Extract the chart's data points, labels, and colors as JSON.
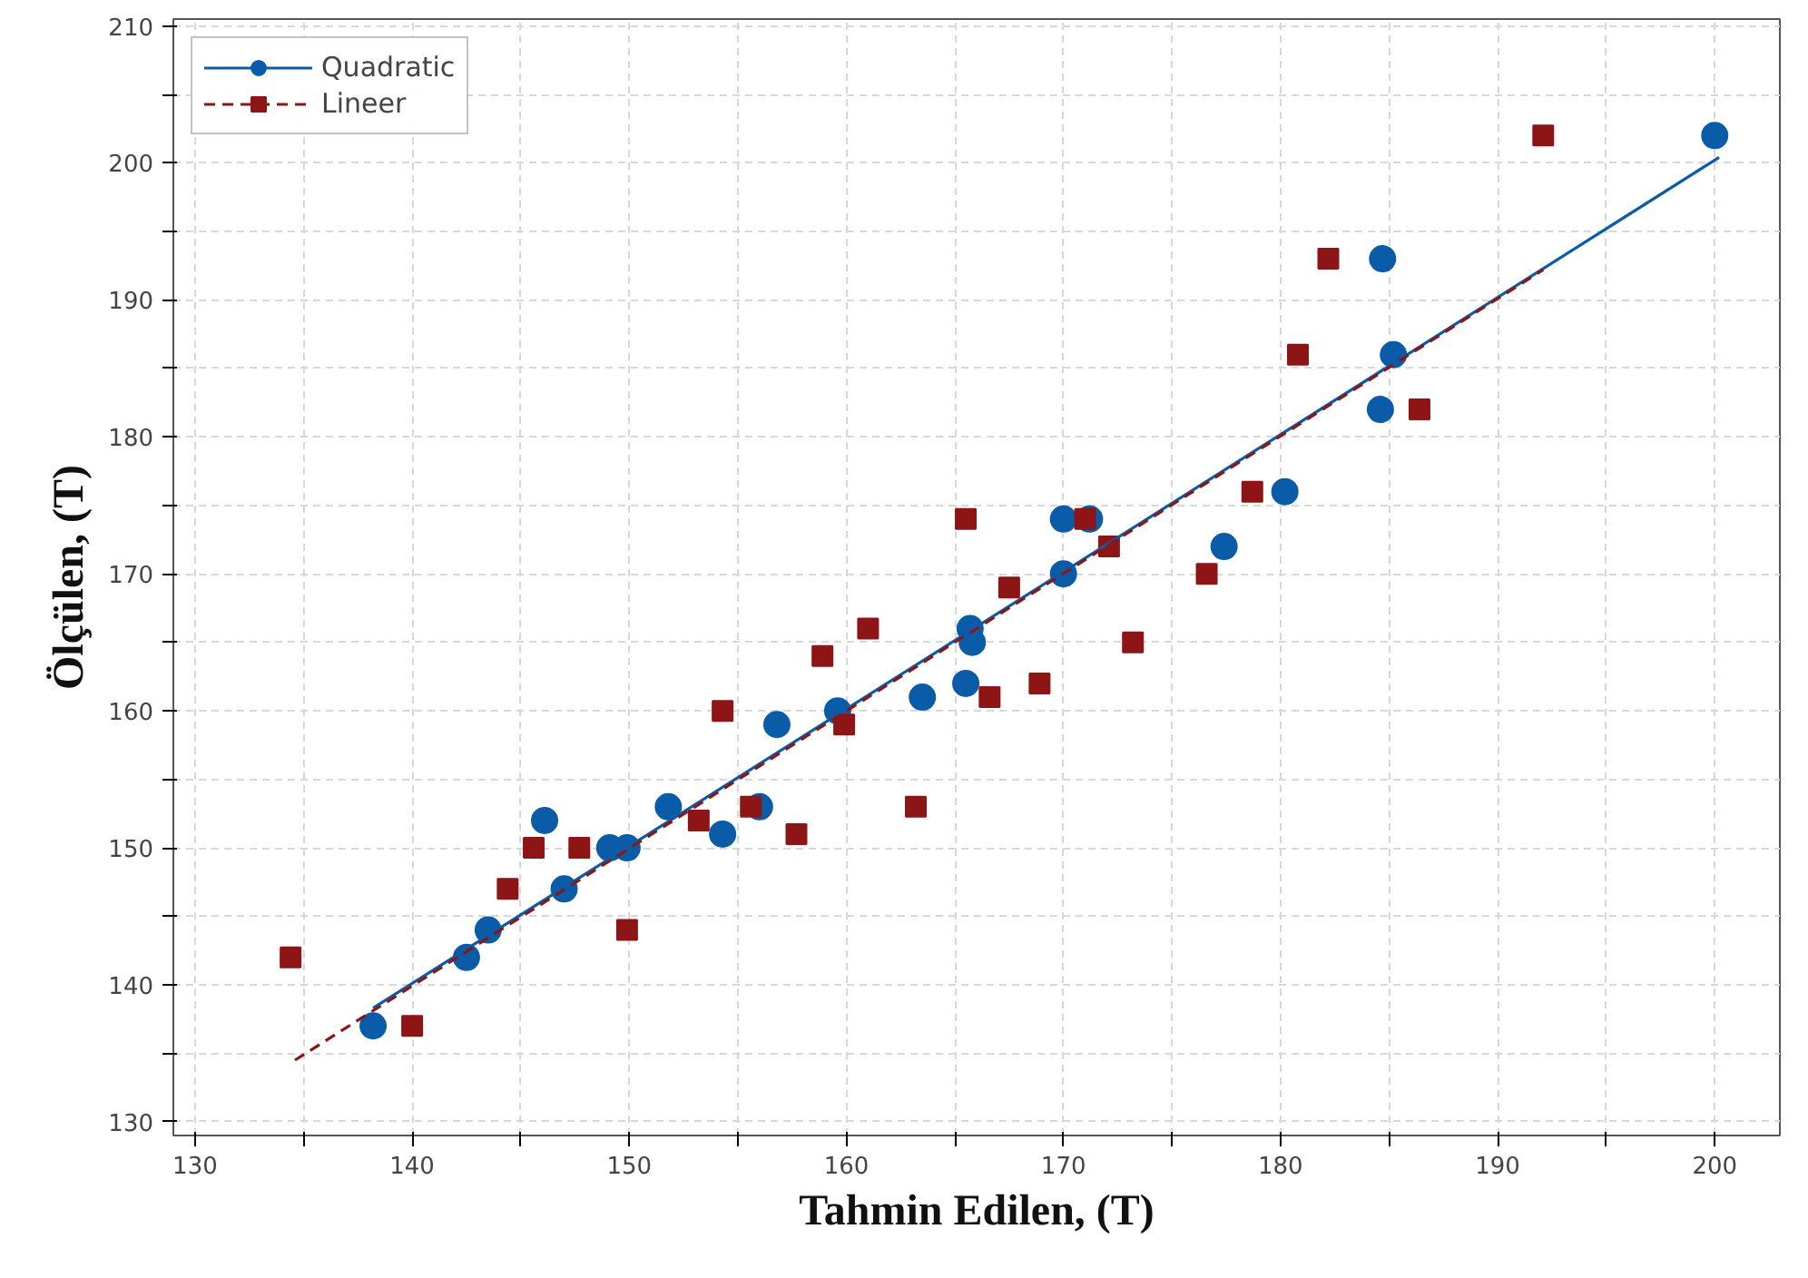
{
  "chart_data": {
    "type": "scatter",
    "xlabel": "Tahmin Edilen, (T)",
    "ylabel": "Ölçülen, (T)",
    "xlim": [
      129,
      203
    ],
    "ylim": [
      129,
      210.5
    ],
    "xticks": [
      130,
      {
        "value": 135,
        "label": null
      },
      140,
      {
        "value": 145,
        "label": null
      },
      150,
      {
        "value": 155,
        "label": null
      },
      160,
      {
        "value": 165,
        "label": null
      },
      170,
      {
        "value": 175,
        "label": null
      },
      180,
      {
        "value": 185,
        "label": null
      },
      190,
      {
        "value": 195,
        "label": null
      },
      200
    ],
    "yticks": [
      130,
      {
        "value": 135,
        "label": null
      },
      140,
      {
        "value": 145,
        "label": null
      },
      150,
      {
        "value": 155,
        "label": null
      },
      160,
      {
        "value": 165,
        "label": null
      },
      170,
      {
        "value": 175,
        "label": null
      },
      180,
      {
        "value": 185,
        "label": null
      },
      190,
      {
        "value": 195,
        "label": null
      },
      200,
      {
        "value": 205,
        "label": null
      },
      210
    ],
    "grid": true,
    "legend": "top left",
    "series": [
      {
        "name": "Quadratic",
        "marker": "circle",
        "line_style": "solid",
        "color": "#0a5ca8",
        "x": [
          138.2,
          142.5,
          143.5,
          146.1,
          147.0,
          149.1,
          149.9,
          151.8,
          154.3,
          156.0,
          156.8,
          159.6,
          163.5,
          165.5,
          165.7,
          165.8,
          170.0,
          170.0,
          171.2,
          177.4,
          180.2,
          184.6,
          184.7,
          185.2,
          200.0
        ],
        "values": [
          137,
          142,
          144,
          152,
          147,
          150,
          150,
          153,
          151,
          153,
          159,
          160,
          161,
          162,
          166,
          165,
          170,
          174,
          174,
          172,
          176,
          182,
          193,
          186,
          202
        ]
      },
      {
        "name": "Lineer",
        "marker": "square",
        "line_style": "dashed",
        "color": "#8e1515",
        "x": [
          134.4,
          140.0,
          144.4,
          145.6,
          147.7,
          149.9,
          153.2,
          154.3,
          155.6,
          157.7,
          158.9,
          159.9,
          161.0,
          163.2,
          165.5,
          166.6,
          167.5,
          168.9,
          171.0,
          172.1,
          173.2,
          176.6,
          178.7,
          180.8,
          182.2,
          186.4,
          192.1
        ],
        "values": [
          142,
          137,
          147,
          150,
          150,
          144,
          152,
          160,
          153,
          151,
          164,
          159,
          166,
          153,
          174,
          161,
          169,
          162,
          174,
          172,
          165,
          170,
          176,
          186,
          193,
          182,
          202
        ]
      },
      {
        "type": "line",
        "line_style": "solid",
        "color": "#0a5ca8",
        "x": [
          138.2,
          200.2
        ],
        "values": [
          138.3,
          200.4
        ]
      },
      {
        "type": "line",
        "line_style": "dashed",
        "color": "#8e1515",
        "x": [
          134.6,
          192.1
        ],
        "values": [
          134.5,
          192.2
        ]
      }
    ]
  }
}
